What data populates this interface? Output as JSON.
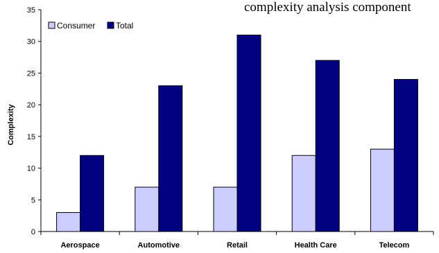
{
  "title_fragment": "complexity analysis component",
  "chart_data": {
    "type": "bar",
    "categories": [
      "Aerospace",
      "Automotive",
      "Retail",
      "Health Care",
      "Telecom"
    ],
    "series": [
      {
        "name": "Consumer",
        "values": [
          3,
          7,
          7,
          12,
          13
        ]
      },
      {
        "name": "Total",
        "values": [
          12,
          23,
          31,
          27,
          24
        ]
      }
    ],
    "ylabel": "Complexity",
    "xlabel": "",
    "ylim": [
      0,
      35
    ],
    "yticks": [
      0,
      5,
      10,
      15,
      20,
      25,
      30,
      35
    ],
    "grid": false,
    "legend_position": "top-left",
    "colors": {
      "Consumer": "#ccccff",
      "Total": "#000080"
    }
  }
}
